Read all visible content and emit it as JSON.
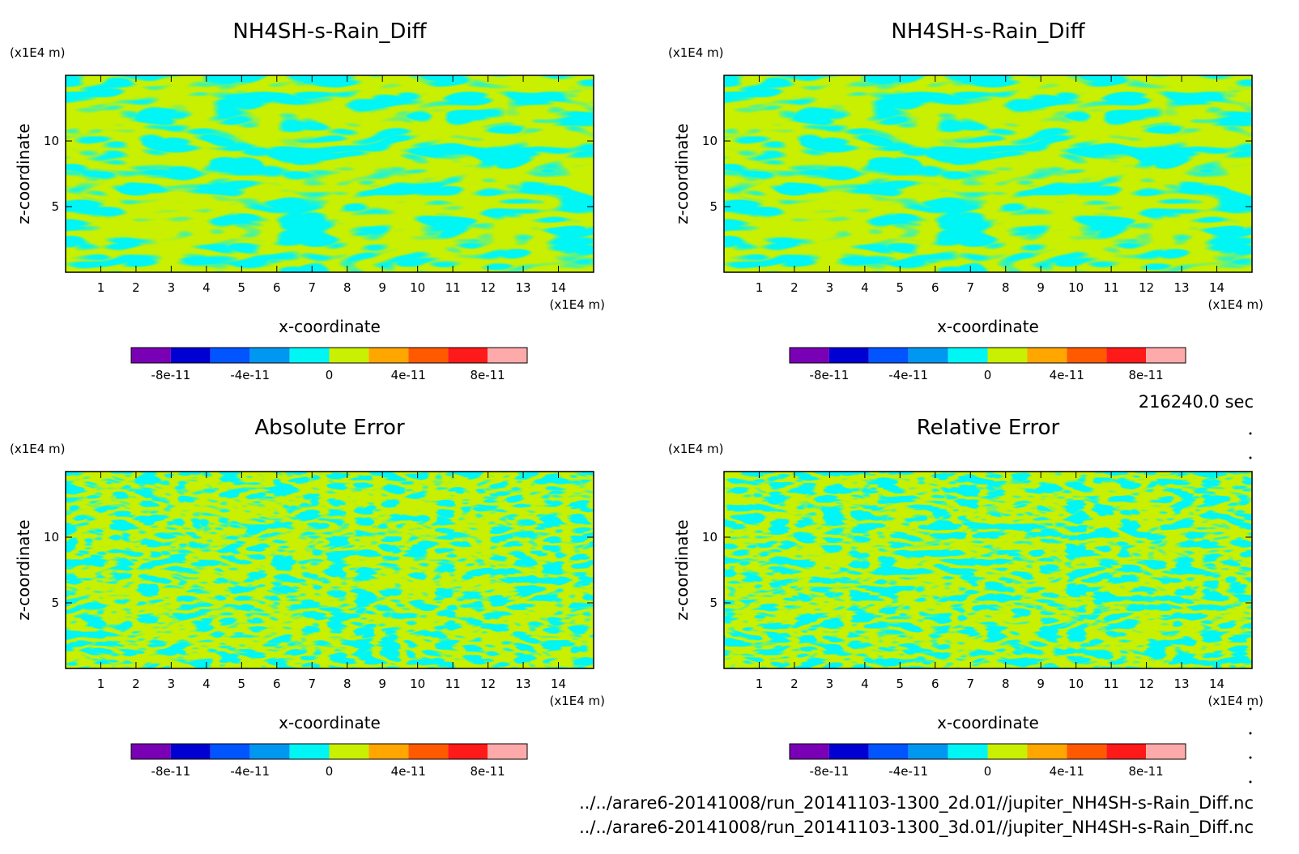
{
  "time_label": "216240.0 sec",
  "files": [
    "../../arare6-20141008/run_20141103-1300_2d.01//jupiter_NH4SH-s-Rain_Diff.nc",
    "../../arare6-20141008/run_20141103-1300_3d.01//jupiter_NH4SH-s-Rain_Diff.nc"
  ],
  "colors": {
    "cyan": "#00f5f5",
    "yellow_green": "#c8f000",
    "palette": [
      "#7a00b5",
      "#0000d2",
      "#0055ff",
      "#0097f0",
      "#00f5f5",
      "#c8f000",
      "#ffa600",
      "#ff5a00",
      "#ff1a1a",
      "#ffaaaa"
    ]
  },
  "chart_data": [
    {
      "type": "heatmap",
      "title": "NH4SH-s-Rain_Diff",
      "xlabel": "x-coordinate",
      "ylabel": "z-coordinate",
      "x_unit": "(x1E4 m)",
      "y_unit": "(x1E4 m)",
      "xlim": [
        0,
        15
      ],
      "ylim": [
        0,
        15
      ],
      "x_ticks": [
        "1",
        "2",
        "3",
        "4",
        "5",
        "6",
        "7",
        "8",
        "9",
        "10",
        "11",
        "12",
        "13",
        "14"
      ],
      "y_ticks": [
        "5",
        "10"
      ],
      "colorbar_ticks": [
        "-8e-11",
        "-4e-11",
        "0",
        "4e-11",
        "8e-11"
      ],
      "colorbar_range": [
        -1e-10,
        1e-10
      ]
    },
    {
      "type": "heatmap",
      "title": "NH4SH-s-Rain_Diff",
      "xlabel": "x-coordinate",
      "ylabel": "z-coordinate",
      "x_unit": "(x1E4 m)",
      "y_unit": "(x1E4 m)",
      "xlim": [
        0,
        15
      ],
      "ylim": [
        0,
        15
      ],
      "x_ticks": [
        "1",
        "2",
        "3",
        "4",
        "5",
        "6",
        "7",
        "8",
        "9",
        "10",
        "11",
        "12",
        "13",
        "14"
      ],
      "y_ticks": [
        "5",
        "10"
      ],
      "colorbar_ticks": [
        "-8e-11",
        "-4e-11",
        "0",
        "4e-11",
        "8e-11"
      ],
      "colorbar_range": [
        -1e-10,
        1e-10
      ]
    },
    {
      "type": "heatmap",
      "title": "Absolute Error",
      "xlabel": "x-coordinate",
      "ylabel": "z-coordinate",
      "x_unit": "(x1E4 m)",
      "y_unit": "(x1E4 m)",
      "xlim": [
        0,
        15
      ],
      "ylim": [
        0,
        15
      ],
      "x_ticks": [
        "1",
        "2",
        "3",
        "4",
        "5",
        "6",
        "7",
        "8",
        "9",
        "10",
        "11",
        "12",
        "13",
        "14"
      ],
      "y_ticks": [
        "5",
        "10"
      ],
      "colorbar_ticks": [
        "-8e-11",
        "-4e-11",
        "0",
        "4e-11",
        "8e-11"
      ],
      "colorbar_range": [
        -1e-10,
        1e-10
      ]
    },
    {
      "type": "heatmap",
      "title": "Relative Error",
      "xlabel": "x-coordinate",
      "ylabel": "z-coordinate",
      "x_unit": "(x1E4 m)",
      "y_unit": "(x1E4 m)",
      "xlim": [
        0,
        15
      ],
      "ylim": [
        0,
        15
      ],
      "x_ticks": [
        "1",
        "2",
        "3",
        "4",
        "5",
        "6",
        "7",
        "8",
        "9",
        "10",
        "11",
        "12",
        "13",
        "14"
      ],
      "y_ticks": [
        "5",
        "10"
      ],
      "colorbar_ticks": [
        "-8e-11",
        "-4e-11",
        "0",
        "4e-11",
        "8e-11"
      ],
      "colorbar_range": [
        -1e-10,
        1e-10
      ]
    }
  ]
}
